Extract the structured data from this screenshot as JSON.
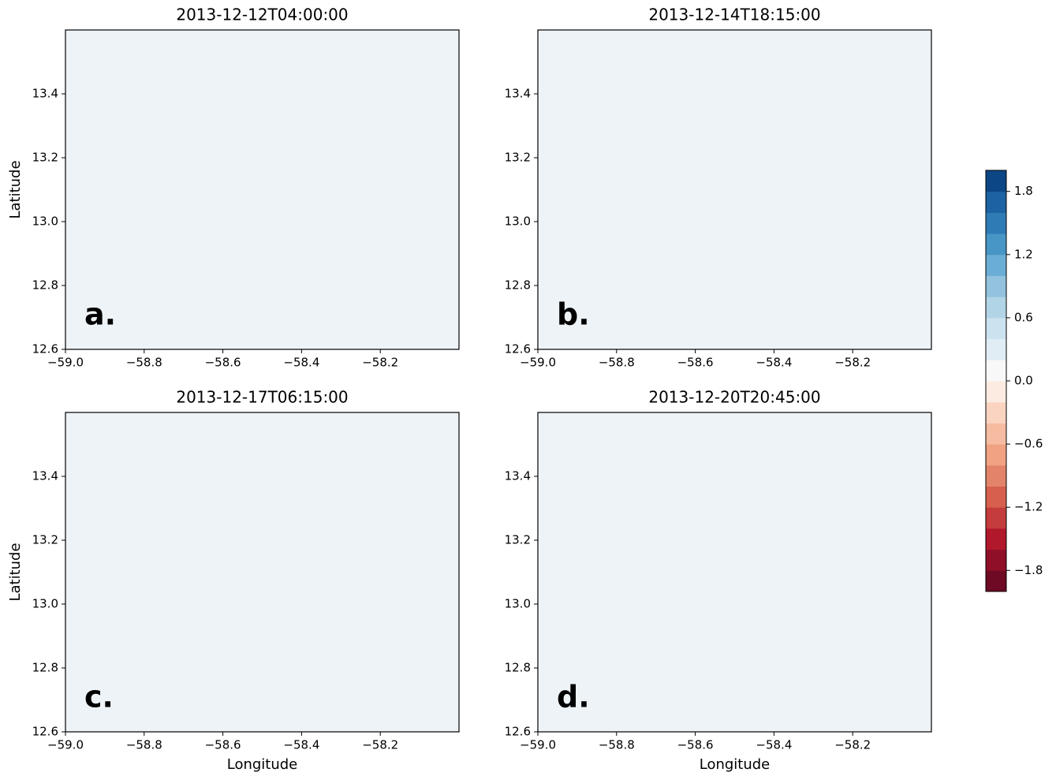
{
  "chart_data": [
    {
      "type": "heatmap",
      "title": "2013-12-12T04:00:00",
      "panel_label": "a.",
      "ylabel": "Latitude",
      "xlim": [
        -59.0,
        -58.0
      ],
      "ylim": [
        12.6,
        13.6
      ],
      "xticks": [
        {
          "value": -59.0,
          "label": "−59.0"
        },
        {
          "value": -58.8,
          "label": "−58.8"
        },
        {
          "value": -58.6,
          "label": "−58.6"
        },
        {
          "value": -58.4,
          "label": "−58.4"
        },
        {
          "value": -58.2,
          "label": "−58.2"
        }
      ],
      "yticks": [
        12.6,
        12.8,
        {
          "value": 13.0,
          "label": "13.0"
        },
        13.2,
        13.4
      ]
    },
    {
      "type": "heatmap",
      "title": "2013-12-14T18:15:00",
      "panel_label": "b.",
      "xlim": [
        -59.0,
        -58.0
      ],
      "ylim": [
        12.6,
        13.6
      ],
      "xticks": [
        {
          "value": -59.0,
          "label": "−59.0"
        },
        {
          "value": -58.8,
          "label": "−58.8"
        },
        {
          "value": -58.6,
          "label": "−58.6"
        },
        {
          "value": -58.4,
          "label": "−58.4"
        },
        {
          "value": -58.2,
          "label": "−58.2"
        }
      ],
      "yticks": [
        12.6,
        12.8,
        {
          "value": 13.0,
          "label": "13.0"
        },
        13.2,
        13.4
      ]
    },
    {
      "type": "heatmap",
      "title": "2013-12-17T06:15:00",
      "panel_label": "c.",
      "xlabel": "Longitude",
      "ylabel": "Latitude",
      "xlim": [
        -59.0,
        -58.0
      ],
      "ylim": [
        12.6,
        13.6
      ],
      "xticks": [
        {
          "value": -59.0,
          "label": "−59.0"
        },
        {
          "value": -58.8,
          "label": "−58.8"
        },
        {
          "value": -58.6,
          "label": "−58.6"
        },
        {
          "value": -58.4,
          "label": "−58.4"
        },
        {
          "value": -58.2,
          "label": "−58.2"
        }
      ],
      "yticks": [
        12.6,
        12.8,
        {
          "value": 13.0,
          "label": "13.0"
        },
        13.2,
        13.4
      ]
    },
    {
      "type": "heatmap",
      "title": "2013-12-20T20:45:00",
      "panel_label": "d.",
      "xlabel": "Longitude",
      "xlim": [
        -59.0,
        -58.0
      ],
      "ylim": [
        12.6,
        13.6
      ],
      "xticks": [
        {
          "value": -59.0,
          "label": "−59.0"
        },
        {
          "value": -58.8,
          "label": "−58.8"
        },
        {
          "value": -58.6,
          "label": "−58.6"
        },
        {
          "value": -58.4,
          "label": "−58.4"
        },
        {
          "value": -58.2,
          "label": "−58.2"
        }
      ],
      "yticks": [
        12.6,
        12.8,
        {
          "value": 13.0,
          "label": "13.0"
        },
        13.2,
        13.4
      ]
    },
    {
      "type": "colorbar",
      "bins": [
        -2.0,
        -1.8,
        -1.6,
        -1.4,
        -1.2,
        -1.0,
        -0.8,
        -0.6,
        -0.4,
        -0.2,
        0.0,
        0.2,
        0.4,
        0.6,
        0.8,
        1.0,
        1.2,
        1.4,
        1.6,
        1.8,
        2.0
      ],
      "colors": [
        "#6e0a23",
        "#8f0f28",
        "#b2182b",
        "#c43c3c",
        "#d6604d",
        "#e3836a",
        "#f0a283",
        "#f6bca1",
        "#fad4c1",
        "#fcebe1",
        "#f8f8f8",
        "#e1edf5",
        "#cce2ef",
        "#b2d4e7",
        "#92c2de",
        "#6baed5",
        "#4796c6",
        "#2f7bb6",
        "#1d62a2",
        "#0c4685"
      ],
      "ylim": [
        -2.0,
        2.0
      ],
      "yticks": [
        {
          "value": -1.8,
          "label": "−1.8"
        },
        {
          "value": -1.2,
          "label": "−1.2"
        },
        {
          "value": -0.6,
          "label": "−0.6"
        },
        {
          "value": 0.0,
          "label": "0.0"
        },
        0.6,
        1.2,
        1.8
      ]
    }
  ]
}
